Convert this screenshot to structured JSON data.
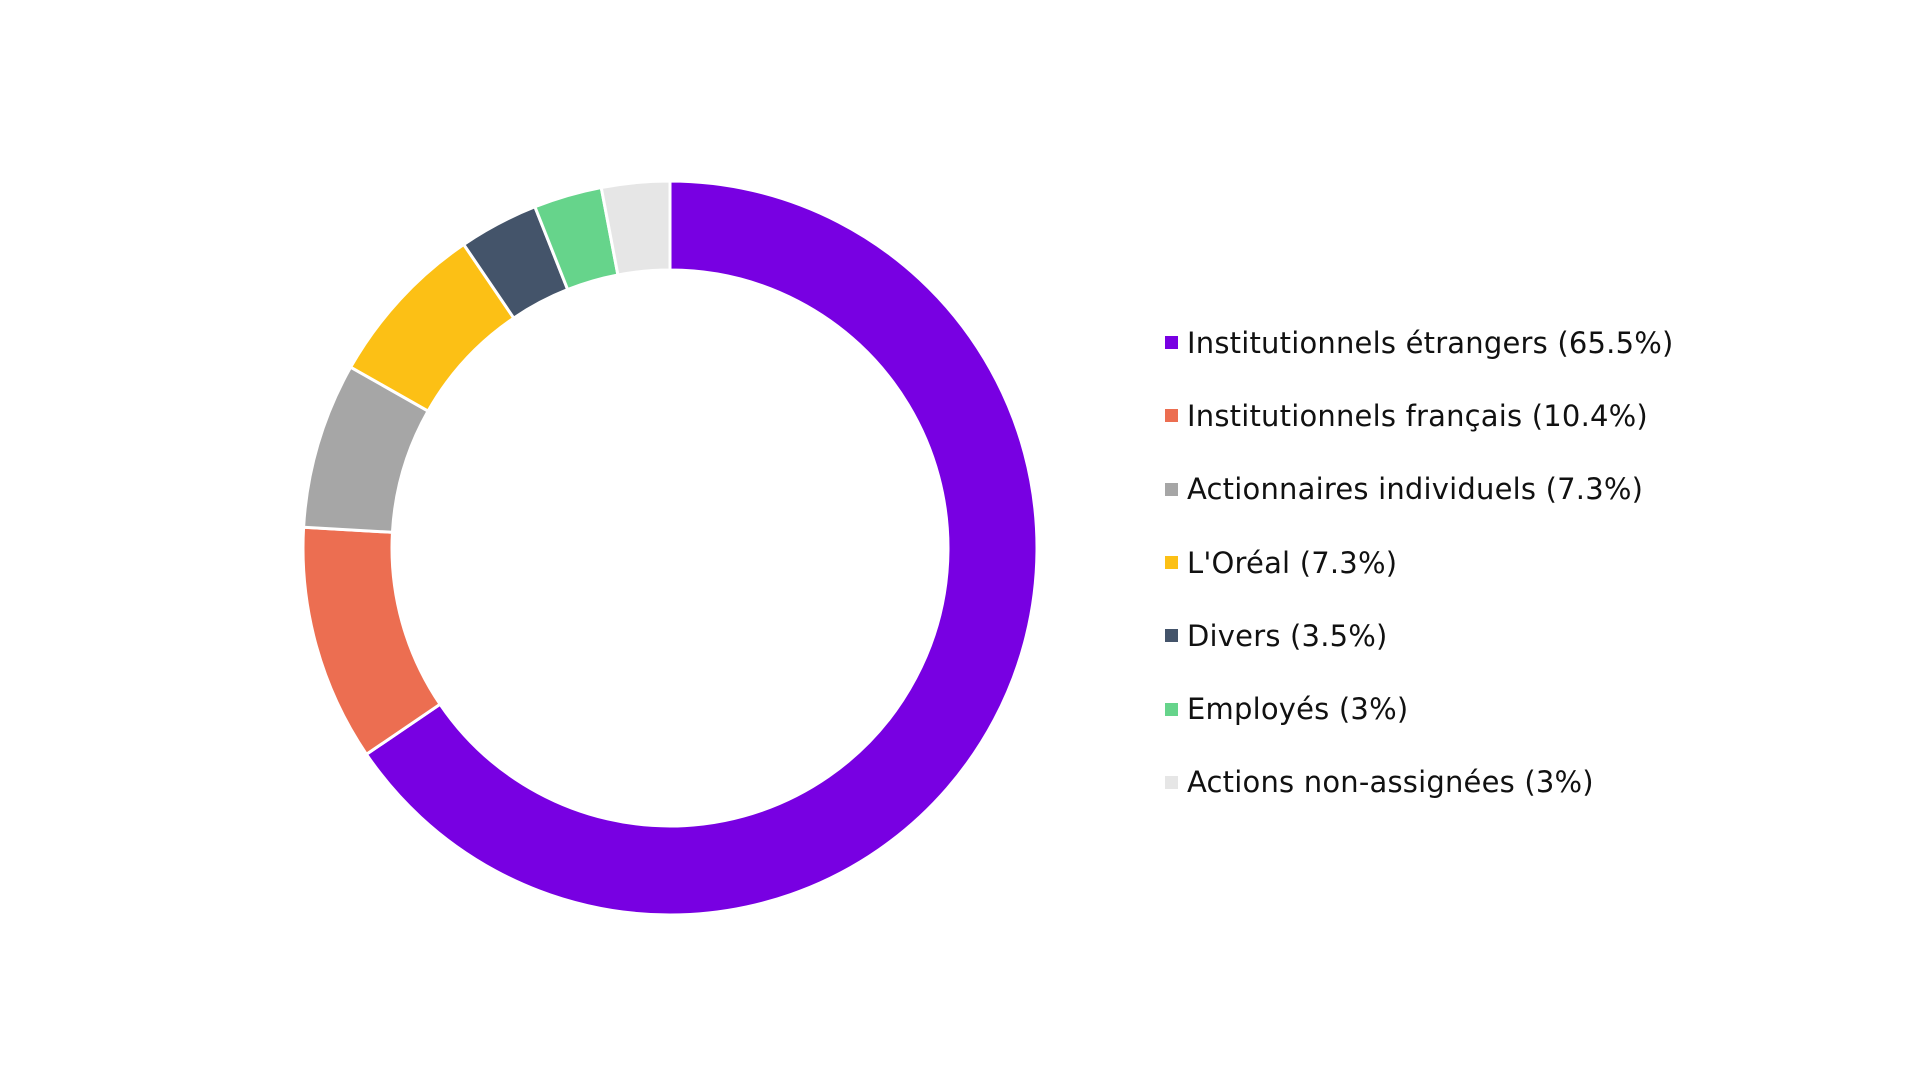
{
  "chart_data": {
    "type": "pie",
    "variant": "donut",
    "title": "",
    "start_angle_deg": 0,
    "direction": "clockwise",
    "legend_position": "right",
    "categories": [
      "Institutionnels étrangers",
      "Institutionnels français",
      "Actionnaires individuels",
      "L'Oréal",
      "Divers",
      "Employés",
      "Actions non-assignées"
    ],
    "values": [
      65.5,
      10.4,
      7.3,
      7.3,
      3.5,
      3,
      3
    ],
    "colors": [
      "#7800e2",
      "#ec6e51",
      "#a6a6a6",
      "#fcc015",
      "#44546a",
      "#66d48b",
      "#e6e6e6"
    ],
    "unit": "%"
  },
  "legend": {
    "items": [
      {
        "label": "Institutionnels étrangers (65.5%)",
        "color": "#7800e2"
      },
      {
        "label": "Institutionnels français (10.4%)",
        "color": "#ec6e51"
      },
      {
        "label": "Actionnaires individuels (7.3%)",
        "color": "#a6a6a6"
      },
      {
        "label": "L'Oréal (7.3%)",
        "color": "#fcc015"
      },
      {
        "label": "Divers (3.5%)",
        "color": "#44546a"
      },
      {
        "label": "Employés (3%)",
        "color": "#66d48b"
      },
      {
        "label": "Actions non-assignées (3%)",
        "color": "#e6e6e6"
      }
    ]
  }
}
